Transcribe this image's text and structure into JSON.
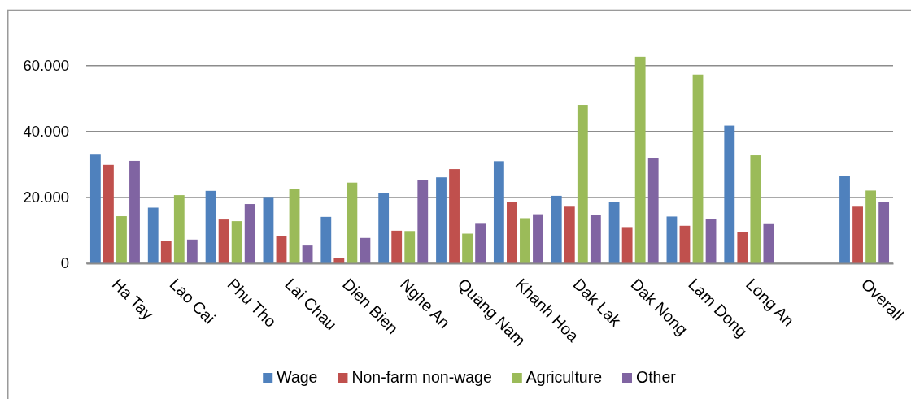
{
  "chart_data": {
    "type": "bar",
    "categories": [
      "Ha Tay",
      "Lao Cai",
      "Phu Tho",
      "Lai Chau",
      "Dien Bien",
      "Nghe An",
      "Quang Nam",
      "Khanh Hoa",
      "Dak Lak",
      "Dak Nong",
      "Lam Dong",
      "Long An",
      null,
      "Overall"
    ],
    "series": [
      {
        "name": "Wage",
        "color": "#4f81bd",
        "values": [
          33000,
          16900,
          22000,
          19900,
          14100,
          21400,
          26100,
          31000,
          20500,
          18700,
          14200,
          41800,
          null,
          26500
        ]
      },
      {
        "name": "Non-farm non-wage",
        "color": "#c0504d",
        "values": [
          29900,
          6700,
          13300,
          8300,
          1500,
          9900,
          28600,
          18700,
          17200,
          11000,
          11400,
          9400,
          null,
          17200
        ]
      },
      {
        "name": "Agriculture",
        "color": "#9bbb59",
        "values": [
          14300,
          20700,
          12800,
          22500,
          24500,
          9800,
          9000,
          13700,
          48100,
          62700,
          57300,
          32800,
          null,
          22100
        ]
      },
      {
        "name": "Other",
        "color": "#8064a2",
        "values": [
          31100,
          7200,
          18000,
          5400,
          7700,
          25400,
          12000,
          14900,
          14600,
          31900,
          13500,
          11900,
          null,
          18600
        ]
      }
    ],
    "ylim": [
      0,
      76800
    ],
    "yticks": [
      0,
      {
        "value": 20000,
        "label": "20.000"
      },
      {
        "value": 40000,
        "label": "40.000"
      },
      {
        "value": 60000,
        "label": "60.000"
      }
    ],
    "grid": "y",
    "legend": "bottom"
  }
}
